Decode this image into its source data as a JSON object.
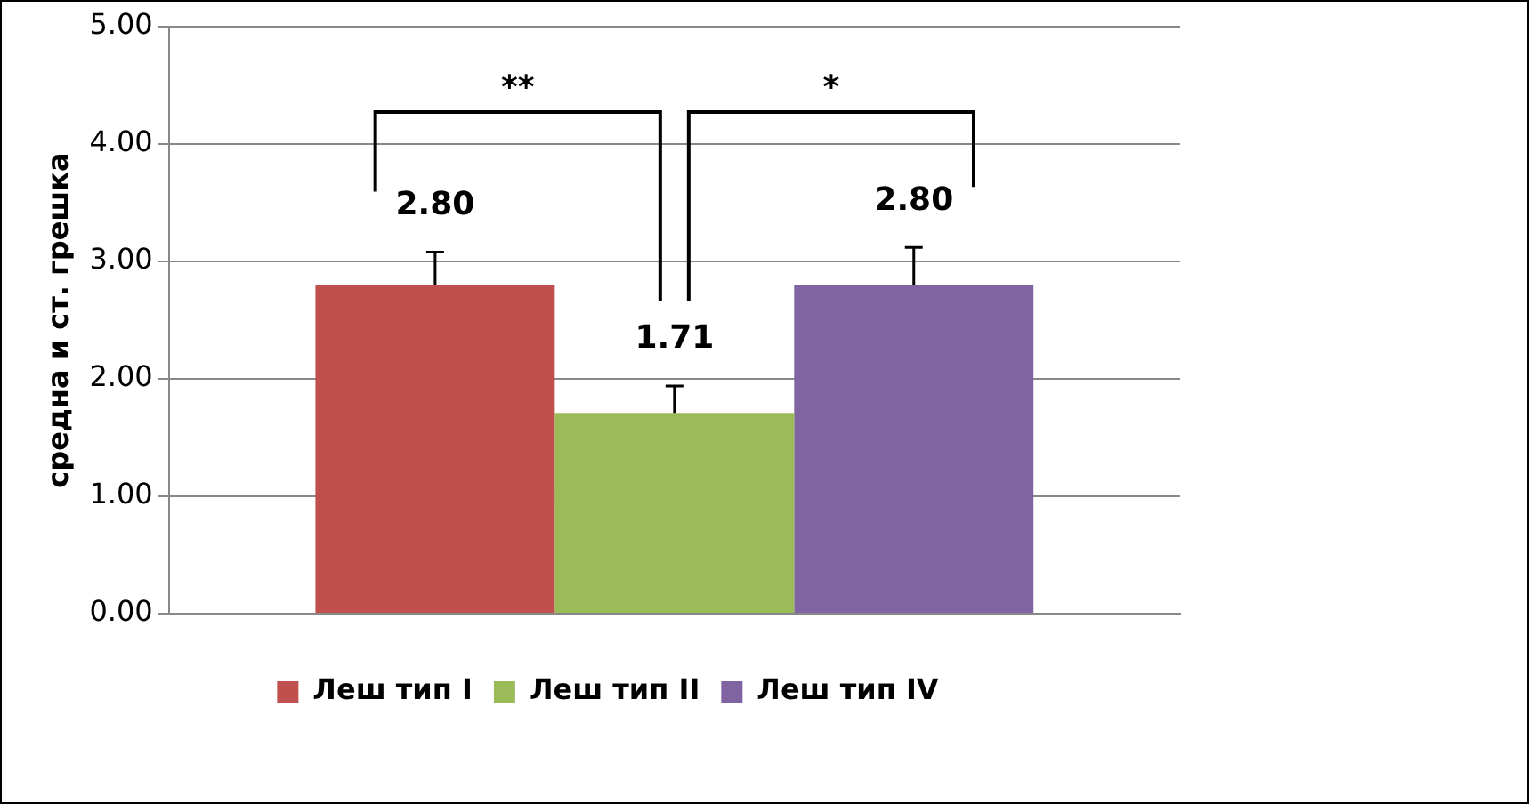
{
  "chart_data": {
    "type": "bar",
    "ylabel": "средна и ст. грешка",
    "categories": [
      null
    ],
    "series": [
      {
        "name": "Леш тип I",
        "color": "#c0504d",
        "values": [
          2.8
        ],
        "errors": [
          [
            2.8,
            3.08
          ]
        ],
        "value_labels": [
          "2.80"
        ]
      },
      {
        "name": "Леш тип II",
        "color": "#9bbb59",
        "values": [
          1.71
        ],
        "errors": [
          [
            1.71,
            1.94
          ]
        ],
        "value_labels": [
          "1.71"
        ]
      },
      {
        "name": "Леш тип IV",
        "color": "#8064a2",
        "values": [
          2.8
        ],
        "errors": [
          [
            2.8,
            3.12
          ]
        ],
        "value_labels": [
          "2.80"
        ]
      }
    ],
    "ylim": [
      0,
      5
    ],
    "yticks": [
      {
        "value": 0,
        "label": "0.00"
      },
      {
        "value": 1,
        "label": "1.00"
      },
      {
        "value": 2,
        "label": "2.00"
      },
      {
        "value": 3,
        "label": "3.00"
      },
      {
        "value": 4,
        "label": "4.00"
      },
      {
        "value": 5,
        "label": "5.00"
      }
    ],
    "grid": "y",
    "legend": "bottom",
    "annotations": [
      "**",
      "*"
    ]
  }
}
